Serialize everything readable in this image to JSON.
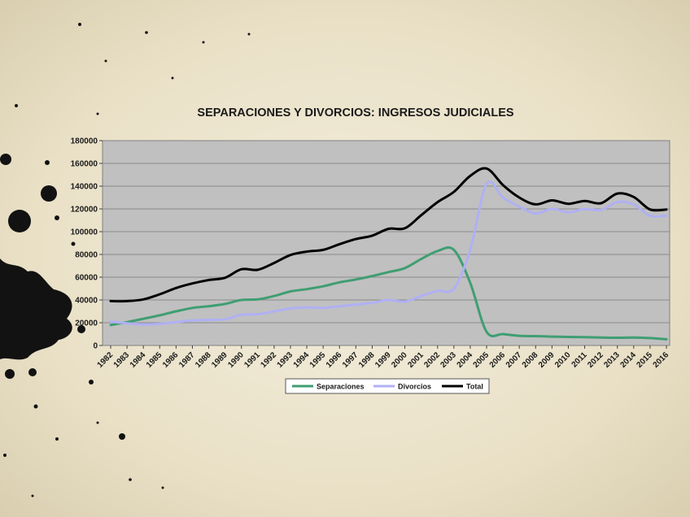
{
  "chart_data": {
    "type": "line",
    "title": "SEPARACIONES Y DIVORCIOS: INGRESOS JUDICIALES",
    "xlabel": "",
    "ylabel": "",
    "ylim": [
      0,
      180000
    ],
    "yticks": [
      "0",
      "20000",
      "40000",
      "60000",
      "80000",
      "100000",
      "120000",
      "140000",
      "160000",
      "180000"
    ],
    "grid": true,
    "legend_position": "bottom",
    "x": [
      "1982",
      "1983",
      "1984",
      "1985",
      "1986",
      "1987",
      "1988",
      "1989",
      "1990",
      "1991",
      "1992",
      "1993",
      "1994",
      "1995",
      "1996",
      "1997",
      "1998",
      "1999",
      "2000",
      "2001",
      "2002",
      "2003",
      "2004",
      "2005",
      "2006",
      "2007",
      "2008",
      "2009",
      "2010",
      "2011",
      "2012",
      "2013",
      "2014",
      "2015",
      "2016"
    ],
    "series": [
      {
        "name": "Separaciones",
        "color": "#3f9e72",
        "values": [
          18000,
          20500,
          23500,
          26500,
          30000,
          33000,
          34500,
          36500,
          40000,
          40500,
          43500,
          47500,
          49500,
          52000,
          55500,
          58000,
          61000,
          64500,
          68000,
          76000,
          83000,
          84000,
          55000,
          12000,
          10000,
          8500,
          8200,
          7800,
          7500,
          7300,
          7000,
          6800,
          7000,
          6500,
          5500
        ]
      },
      {
        "name": "Divorcios",
        "color": "#b0b0f4",
        "values": [
          21000,
          19500,
          18500,
          19000,
          20500,
          22000,
          22500,
          23000,
          27000,
          27500,
          30000,
          32500,
          33500,
          33000,
          34500,
          36000,
          37500,
          40000,
          38500,
          43500,
          48000,
          50000,
          84000,
          142000,
          130000,
          122000,
          116000,
          120000,
          117000,
          120000,
          119000,
          126000,
          124000,
          114000,
          114000
        ]
      },
      {
        "name": "Total",
        "color": "#000000",
        "values": [
          39000,
          39000,
          40500,
          45000,
          50500,
          54500,
          57500,
          59500,
          67000,
          66500,
          72500,
          79500,
          82500,
          84000,
          89000,
          93500,
          96500,
          102500,
          103000,
          114500,
          126000,
          135000,
          149000,
          155500,
          141000,
          130000,
          124000,
          127500,
          124500,
          127000,
          125000,
          133500,
          130500,
          119500,
          119500
        ]
      }
    ]
  }
}
